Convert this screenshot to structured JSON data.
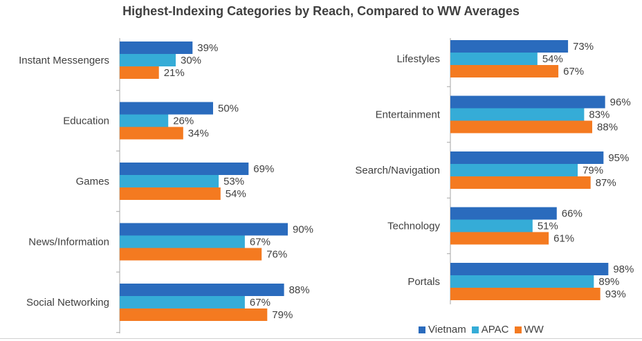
{
  "chart_data": {
    "type": "bar",
    "orientation": "horizontal",
    "title": "Highest-Indexing Categories by Reach, Compared to WW Averages",
    "xlim": [
      0,
      100
    ],
    "legend": {
      "placement": "bottom-right",
      "entries": [
        "Vietnam",
        "APAC",
        "WW"
      ]
    },
    "series_colors": {
      "Vietnam": "#2a6bbd",
      "APAC": "#35acd7",
      "WW": "#f47a20"
    },
    "panels": [
      {
        "name": "left",
        "categories": [
          "Instant Messengers",
          "Education",
          "Games",
          "News/Information",
          "Social Networking"
        ],
        "series": [
          {
            "name": "Vietnam",
            "values": [
              39,
              50,
              69,
              90,
              88
            ]
          },
          {
            "name": "APAC",
            "values": [
              30,
              26,
              53,
              67,
              67
            ]
          },
          {
            "name": "WW",
            "values": [
              21,
              34,
              54,
              76,
              79
            ]
          }
        ]
      },
      {
        "name": "right",
        "categories": [
          "Lifestyles",
          "Entertainment",
          "Search/Navigation",
          "Technology",
          "Portals"
        ],
        "series": [
          {
            "name": "Vietnam",
            "values": [
              73,
              96,
              95,
              66,
              98
            ]
          },
          {
            "name": "APAC",
            "values": [
              54,
              83,
              79,
              51,
              89
            ]
          },
          {
            "name": "WW",
            "values": [
              67,
              88,
              87,
              61,
              93
            ]
          }
        ]
      }
    ],
    "value_suffix": "%"
  }
}
